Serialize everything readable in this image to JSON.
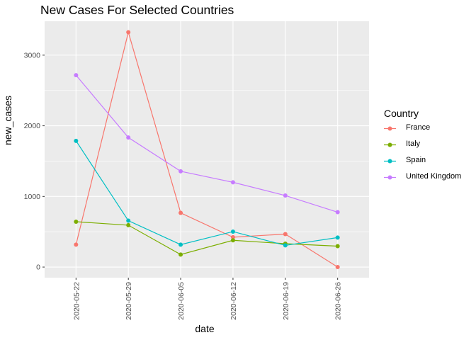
{
  "chart_data": {
    "type": "line",
    "title": "New Cases For Selected Countries",
    "xlabel": "date",
    "ylabel": "new_cases",
    "x": [
      "2020-05-22",
      "2020-05-29",
      "2020-06-05",
      "2020-06-12",
      "2020-06-19",
      "2020-06-26"
    ],
    "ylim": [
      -150,
      3480
    ],
    "yticks": [
      0,
      1000,
      2000,
      3000
    ],
    "ytick_labels": [
      "0",
      "1000",
      "2000",
      "3000"
    ],
    "legend_title": "Country",
    "legend_position": "right",
    "grid": true,
    "series": [
      {
        "name": "France",
        "color": "#F8766D",
        "values": [
          318,
          3325,
          767,
          423,
          467,
          0
        ]
      },
      {
        "name": "Italy",
        "color": "#7CAE00",
        "values": [
          642,
          593,
          177,
          379,
          331,
          296
        ]
      },
      {
        "name": "Spain",
        "color": "#00BFC4",
        "values": [
          1787,
          657,
          318,
          502,
          307,
          418
        ]
      },
      {
        "name": "United Kingdom",
        "color": "#C77CFF",
        "values": [
          2717,
          1834,
          1356,
          1200,
          1013,
          777
        ]
      }
    ]
  }
}
